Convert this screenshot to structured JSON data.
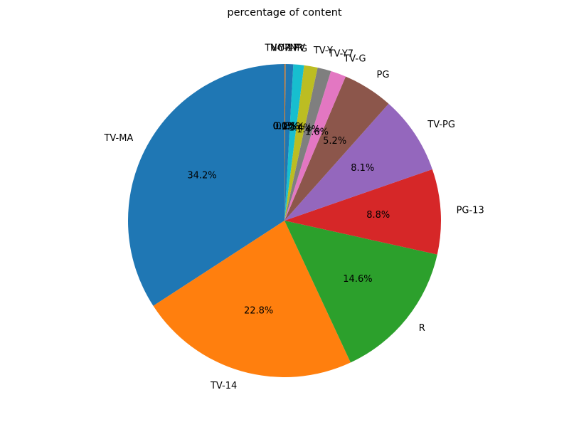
{
  "chart_data": {
    "type": "pie",
    "title": "percentage of content",
    "start_angle_deg": 90,
    "direction": "counterclockwise",
    "slices": [
      {
        "label": "TV-MA",
        "value": 34.2,
        "pct_label": "34.2%",
        "color": "#1f77b4"
      },
      {
        "label": "TV-14",
        "value": 22.8,
        "pct_label": "22.8%",
        "color": "#ff7f0e"
      },
      {
        "label": "R",
        "value": 14.6,
        "pct_label": "14.6%",
        "color": "#2ca02c"
      },
      {
        "label": "PG-13",
        "value": 8.8,
        "pct_label": "8.8%",
        "color": "#d62728"
      },
      {
        "label": "TV-PG",
        "value": 8.1,
        "pct_label": "8.1%",
        "color": "#9467bd"
      },
      {
        "label": "PG",
        "value": 5.2,
        "pct_label": "5.2%",
        "color": "#8c564b"
      },
      {
        "label": "TV-G",
        "value": 1.6,
        "pct_label": "1.6%",
        "color": "#e377c2"
      },
      {
        "label": "TV-Y7",
        "value": 1.4,
        "pct_label": "1.4%",
        "color": "#7f7f7f"
      },
      {
        "label": "TV-Y",
        "value": 1.4,
        "pct_label": "1.4%",
        "color": "#bcbd22"
      },
      {
        "label": "G",
        "value": 1.1,
        "pct_label": "1.1%",
        "color": "#17becf"
      },
      {
        "label": "NR",
        "value": 0.8,
        "pct_label": "0.8%",
        "color": "#1f77b4"
      },
      {
        "label": "TV-Y7-FV",
        "value": 0.1,
        "pct_label": "0.1%",
        "color": "#ff7f0e"
      },
      {
        "label": "UR",
        "value": 0.0,
        "pct_label": "0.0%",
        "color": "#2ca02c"
      },
      {
        "label": "NC-17",
        "value": 0.0,
        "pct_label": "0.0%",
        "color": "#d62728"
      }
    ]
  }
}
